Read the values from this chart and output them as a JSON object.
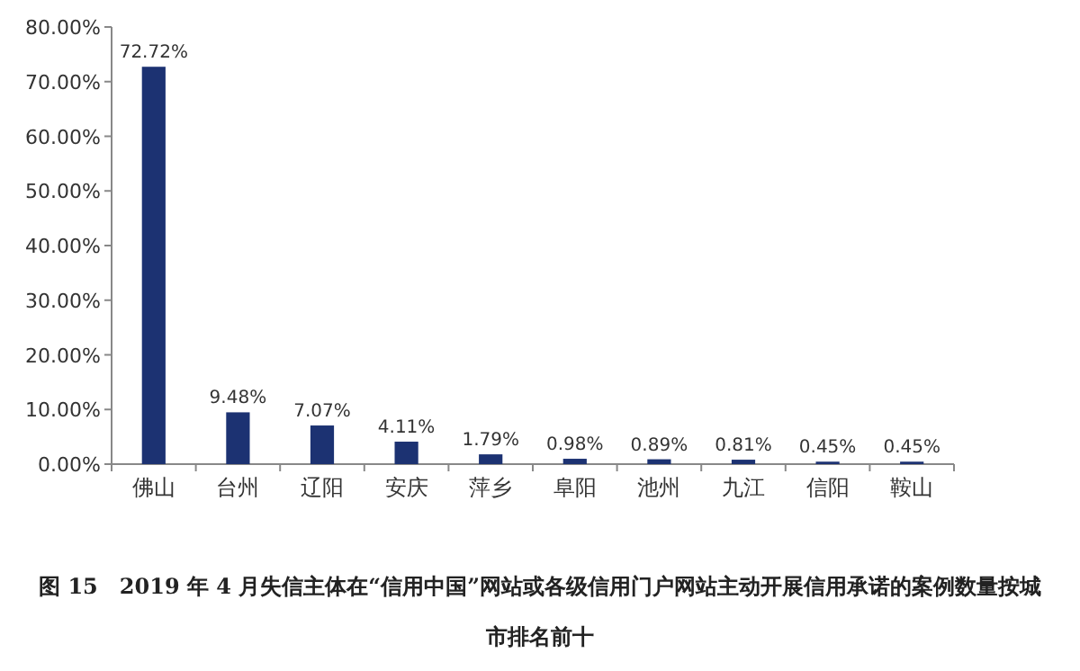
{
  "chart_data": {
    "type": "bar",
    "title": "图 15　2019 年 4 月失信主体在“信用中国”网站或各级信用门户网站主动开展信用承诺的案例数量按城市排名前十",
    "categories": [
      "佛山",
      "台州",
      "辽阳",
      "安庆",
      "萍乡",
      "阜阳",
      "池州",
      "九江",
      "信阳",
      "鞍山"
    ],
    "values": [
      72.72,
      9.48,
      7.07,
      4.11,
      1.79,
      0.98,
      0.89,
      0.81,
      0.45,
      0.45
    ],
    "value_labels": [
      "72.72%",
      "9.48%",
      "7.07%",
      "4.11%",
      "1.79%",
      "0.98%",
      "0.89%",
      "0.81%",
      "0.45%",
      "0.45%"
    ],
    "color": "#1c3272",
    "ylim": [
      0,
      80
    ],
    "yticks": [
      {
        "value": 0,
        "label": "0.00%"
      },
      {
        "value": 10,
        "label": "10.00%"
      },
      {
        "value": 20,
        "label": "20.00%"
      },
      {
        "value": 30,
        "label": "30.00%"
      },
      {
        "value": 40,
        "label": "40.00%"
      },
      {
        "value": 50,
        "label": "50.00%"
      },
      {
        "value": 60,
        "label": "60.00%"
      },
      {
        "value": 70,
        "label": "70.00%"
      },
      {
        "value": 80,
        "label": "80.00%"
      }
    ]
  }
}
